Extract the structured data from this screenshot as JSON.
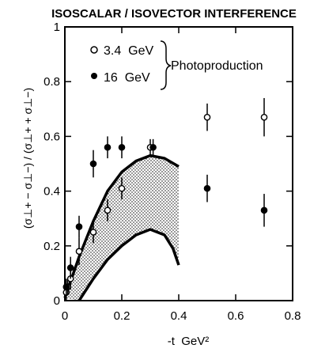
{
  "chart_data": {
    "type": "scatter",
    "title": "ISOSCALAR / ISOVECTOR INTERFERENCE",
    "xlabel": "-t  GeV²",
    "ylabel": "(σ⊥+ − σ⊥−) / (σ⊥+ + σ⊥−)",
    "xlim": [
      0,
      0.8
    ],
    "ylim": [
      0,
      1
    ],
    "x_ticks": [
      0,
      0.2,
      0.4,
      0.6,
      0.8
    ],
    "x_tick_labels": [
      "0",
      "0.2",
      "0.4",
      "0.6",
      "0.8"
    ],
    "y_ticks": [
      0,
      0.2,
      0.4,
      0.6,
      0.8,
      1
    ],
    "y_tick_labels": [
      "0",
      "0.2",
      "0.4",
      "0.6",
      "0.8",
      "1"
    ],
    "grid": false,
    "legend_group_label": "Photoproduction",
    "legend_position": "top-left",
    "series": [
      {
        "name": "3.4  GeV",
        "marker": "open-circle",
        "points": [
          {
            "x": 0.005,
            "y": 0.03,
            "err": 0.03
          },
          {
            "x": 0.01,
            "y": 0.05,
            "err": 0.03
          },
          {
            "x": 0.02,
            "y": 0.08,
            "err": 0.04
          },
          {
            "x": 0.05,
            "y": 0.18,
            "err": 0.05
          },
          {
            "x": 0.1,
            "y": 0.25,
            "err": 0.04
          },
          {
            "x": 0.15,
            "y": 0.33,
            "err": 0.04
          },
          {
            "x": 0.2,
            "y": 0.41,
            "err": 0.04
          },
          {
            "x": 0.3,
            "y": 0.56,
            "err": 0.03
          },
          {
            "x": 0.5,
            "y": 0.67,
            "err": 0.05
          },
          {
            "x": 0.7,
            "y": 0.67,
            "err": 0.07
          }
        ]
      },
      {
        "name": "16  GeV",
        "marker": "filled-circle",
        "points": [
          {
            "x": 0.005,
            "y": 0.05,
            "err": 0.03
          },
          {
            "x": 0.02,
            "y": 0.12,
            "err": 0.04
          },
          {
            "x": 0.05,
            "y": 0.27,
            "err": 0.04
          },
          {
            "x": 0.1,
            "y": 0.5,
            "err": 0.05
          },
          {
            "x": 0.15,
            "y": 0.56,
            "err": 0.04
          },
          {
            "x": 0.2,
            "y": 0.56,
            "err": 0.04
          },
          {
            "x": 0.31,
            "y": 0.56,
            "err": 0.03
          },
          {
            "x": 0.5,
            "y": 0.41,
            "err": 0.05
          },
          {
            "x": 0.7,
            "y": 0.33,
            "err": 0.06
          }
        ]
      }
    ],
    "band": {
      "upper": [
        [
          0,
          0.01
        ],
        [
          0.02,
          0.07
        ],
        [
          0.05,
          0.16
        ],
        [
          0.1,
          0.29
        ],
        [
          0.15,
          0.4
        ],
        [
          0.2,
          0.47
        ],
        [
          0.25,
          0.51
        ],
        [
          0.3,
          0.53
        ],
        [
          0.35,
          0.52
        ],
        [
          0.4,
          0.49
        ]
      ],
      "lower": [
        [
          0.05,
          0
        ],
        [
          0.1,
          0.08
        ],
        [
          0.15,
          0.15
        ],
        [
          0.2,
          0.2
        ],
        [
          0.25,
          0.24
        ],
        [
          0.3,
          0.26
        ],
        [
          0.35,
          0.24
        ],
        [
          0.38,
          0.19
        ],
        [
          0.4,
          0.13
        ]
      ]
    }
  }
}
